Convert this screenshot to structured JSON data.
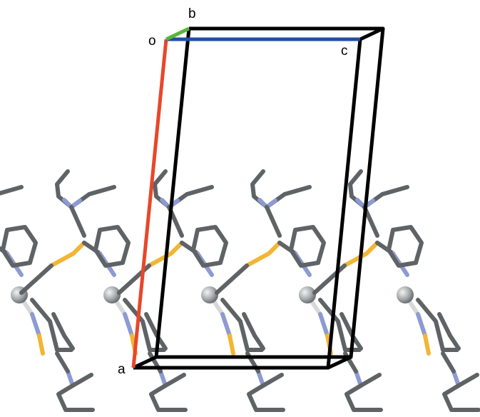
{
  "axis_labels": {
    "o": "o",
    "a": "a",
    "b": "b",
    "c": "c"
  }
}
